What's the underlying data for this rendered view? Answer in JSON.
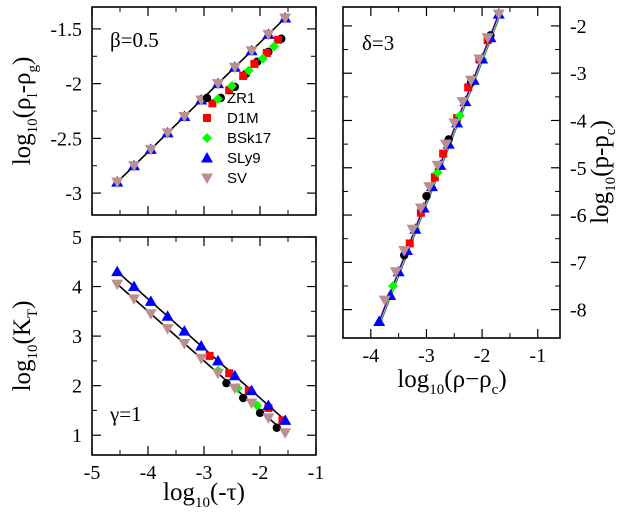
{
  "figure": {
    "marker_colors": {
      "ZR1": "#000000",
      "D1M": "#ff0000",
      "BSk17": "#00ff00",
      "SLy9": "#0000ff",
      "SV": "#bc8f8f"
    }
  },
  "chart_data": [
    {
      "id": "beta",
      "type": "scatter",
      "annotation": "β=0.5",
      "ylabel_parts": {
        "base": "log",
        "sub1": "10",
        "mid": "(ρ",
        "sub2": "l",
        "mid2": "-ρ",
        "sub3": "g",
        "end": ")"
      },
      "xlim": [
        -5,
        -1
      ],
      "ylim": [
        -3.2,
        -1.3
      ],
      "xticks": [
        -5,
        -4,
        -3,
        -2,
        -1
      ],
      "yticks": [
        -3,
        -2.5,
        -2,
        -1.5
      ],
      "ytick_labels": [
        "-3",
        "-2.5",
        "-2",
        "-1.5"
      ],
      "fit_line": {
        "x": [
          -4.55,
          -1.55
        ],
        "y": [
          -2.9,
          -1.4
        ]
      },
      "legend": {
        "placement": "center-right",
        "entries": [
          "ZR1",
          "D1M",
          "BSk17",
          "SLy9",
          "SV"
        ]
      },
      "series": [
        {
          "name": "ZR1",
          "marker": "circle",
          "x": [
            -2.7,
            -2.45,
            -2.25,
            -2.05,
            -1.85,
            -1.62
          ],
          "y": [
            -2.13,
            -2.03,
            -1.91,
            -1.8,
            -1.71,
            -1.59
          ]
        },
        {
          "name": "D1M",
          "marker": "square",
          "x": [
            -2.85,
            -2.55,
            -2.3,
            -2.1,
            -1.88,
            -1.68
          ],
          "y": [
            -2.18,
            -2.06,
            -1.93,
            -1.82,
            -1.72,
            -1.6
          ]
        },
        {
          "name": "BSk17",
          "marker": "diamond",
          "x": [
            -2.75,
            -2.5,
            -2.2,
            -1.95,
            -1.75
          ],
          "y": [
            -2.14,
            -2.02,
            -1.88,
            -1.77,
            -1.66
          ]
        },
        {
          "name": "SLy9",
          "marker": "triangle-up",
          "x": [
            -4.55,
            -4.25,
            -3.95,
            -3.65,
            -3.35,
            -3.05,
            -2.75,
            -2.45,
            -2.15,
            -1.85,
            -1.55
          ],
          "y": [
            -2.9,
            -2.75,
            -2.6,
            -2.45,
            -2.3,
            -2.15,
            -2.0,
            -1.85,
            -1.7,
            -1.55,
            -1.4
          ]
        },
        {
          "name": "SV",
          "marker": "triangle-down",
          "x": [
            -4.55,
            -4.25,
            -3.95,
            -3.65,
            -3.35,
            -3.05,
            -2.75,
            -2.45,
            -2.15,
            -1.85,
            -1.55
          ],
          "y": [
            -2.9,
            -2.75,
            -2.6,
            -2.45,
            -2.3,
            -2.15,
            -2.0,
            -1.85,
            -1.7,
            -1.55,
            -1.4
          ]
        }
      ]
    },
    {
      "id": "gamma",
      "type": "scatter",
      "annotation": "γ=1",
      "xlabel_parts": {
        "base": "log",
        "sub1": "10",
        "end": "(-τ)"
      },
      "ylabel_parts": {
        "base": "log",
        "sub1": "10",
        "mid": "(K",
        "sub2": "T",
        "end": ")"
      },
      "xlim": [
        -5,
        -1
      ],
      "ylim": [
        0.6,
        5
      ],
      "xticks": [
        -5,
        -4,
        -3,
        -2,
        -1
      ],
      "yticks": [
        1,
        2,
        3,
        4,
        5
      ],
      "fit_lines": [
        {
          "x": [
            -4.55,
            -1.55
          ],
          "y": [
            4.3,
            1.3
          ]
        },
        {
          "x": [
            -4.55,
            -1.55
          ],
          "y": [
            4.05,
            1.05
          ]
        }
      ],
      "series": [
        {
          "name": "ZR1",
          "marker": "circle",
          "x": [
            -2.6,
            -2.3,
            -2.0,
            -1.7
          ],
          "y": [
            2.05,
            1.75,
            1.45,
            1.15
          ]
        },
        {
          "name": "D1M",
          "marker": "square",
          "x": [
            -2.9,
            -2.55,
            -2.2,
            -1.85,
            -1.6
          ],
          "y": [
            2.6,
            2.25,
            1.9,
            1.55,
            1.3
          ]
        },
        {
          "name": "BSk17",
          "marker": "diamond",
          "x": [
            -2.75,
            -2.4,
            -2.05
          ],
          "y": [
            2.3,
            1.95,
            1.6
          ]
        },
        {
          "name": "SLy9",
          "marker": "triangle-up",
          "x": [
            -4.55,
            -4.25,
            -3.95,
            -3.65,
            -3.35,
            -3.05,
            -2.75,
            -2.45,
            -2.15,
            -1.85,
            -1.55
          ],
          "y": [
            4.3,
            4.0,
            3.7,
            3.4,
            3.1,
            2.8,
            2.5,
            2.2,
            1.9,
            1.6,
            1.3
          ]
        },
        {
          "name": "SV",
          "marker": "triangle-down",
          "x": [
            -4.55,
            -4.25,
            -3.95,
            -3.65,
            -3.35,
            -3.05,
            -2.75,
            -2.45,
            -2.15,
            -1.85,
            -1.55
          ],
          "y": [
            4.05,
            3.75,
            3.45,
            3.15,
            2.85,
            2.55,
            2.25,
            1.95,
            1.65,
            1.35,
            1.05
          ]
        }
      ]
    },
    {
      "id": "delta",
      "type": "scatter",
      "annotation": "δ=3",
      "xlabel_parts": {
        "base": "log",
        "sub1": "10",
        "mid": "(ρ−ρ",
        "sub2": "c",
        "end": ")"
      },
      "ylabel_parts": {
        "base": "log",
        "sub1": "10",
        "mid": "(p-p",
        "sub2": "c",
        "end": ")"
      },
      "xlim": [
        -4.5,
        -0.6
      ],
      "ylim": [
        -8.6,
        -1.6
      ],
      "xticks": [
        -4,
        -3,
        -2,
        -1
      ],
      "yticks": [
        -8,
        -7,
        -6,
        -5,
        -4,
        -3,
        -2
      ],
      "fit_line": {
        "x": [
          -3.85,
          -1.7
        ],
        "y": [
          -8.25,
          -1.75
        ]
      },
      "series": [
        {
          "name": "ZR1",
          "marker": "circle",
          "x": [
            -3.4,
            -3.0,
            -2.6,
            -2.2,
            -1.85
          ],
          "y": [
            -6.85,
            -5.6,
            -4.4,
            -3.2,
            -2.2
          ]
        },
        {
          "name": "D1M",
          "marker": "square",
          "x": [
            -3.3,
            -3.1,
            -2.85,
            -2.7,
            -2.45,
            -2.25,
            -2.05,
            -1.9
          ],
          "y": [
            -6.6,
            -5.95,
            -5.2,
            -4.7,
            -3.95,
            -3.3,
            -2.7,
            -2.3
          ]
        },
        {
          "name": "BSk17",
          "marker": "diamond",
          "x": [
            -3.6,
            -3.2,
            -2.8,
            -2.4,
            -2.0
          ],
          "y": [
            -7.5,
            -6.3,
            -5.1,
            -3.9,
            -2.7
          ]
        },
        {
          "name": "SLy9",
          "marker": "triangle-up",
          "x": [
            -3.85,
            -3.65,
            -3.5,
            -3.35,
            -3.2,
            -3.05,
            -2.9,
            -2.75,
            -2.6,
            -2.45,
            -2.3,
            -2.15,
            -2.0,
            -1.85,
            -1.7
          ],
          "y": [
            -8.25,
            -7.7,
            -7.2,
            -6.75,
            -6.3,
            -5.85,
            -5.4,
            -4.95,
            -4.5,
            -4.05,
            -3.6,
            -3.15,
            -2.7,
            -2.25,
            -1.75
          ]
        },
        {
          "name": "SV",
          "marker": "triangle-down",
          "x": [
            -3.75,
            -3.55,
            -3.4,
            -3.25,
            -3.1,
            -2.95,
            -2.8,
            -2.65,
            -2.5,
            -2.35,
            -2.2,
            -2.05,
            -1.9,
            -1.7
          ],
          "y": [
            -7.8,
            -7.2,
            -6.75,
            -6.3,
            -5.85,
            -5.4,
            -4.95,
            -4.5,
            -4.05,
            -3.6,
            -3.15,
            -2.7,
            -2.25,
            -1.75
          ]
        }
      ]
    }
  ]
}
